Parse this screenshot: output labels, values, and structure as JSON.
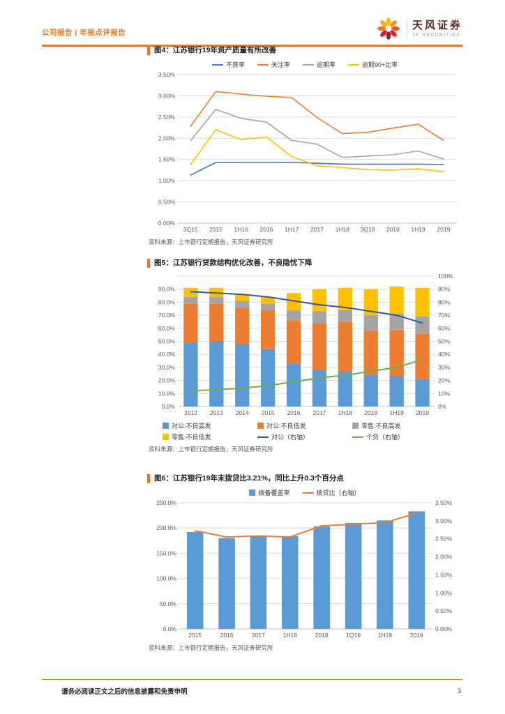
{
  "header": {
    "category": "公司报告 | 年报点评报告",
    "brand_cn": "天风证券",
    "brand_en": "TF SECURITIES"
  },
  "footer": {
    "disclaimer": "请务必阅读正文之后的信息披露和免责申明",
    "page": "3"
  },
  "chart_data": [
    {
      "id": "fig4",
      "type": "line",
      "title": "图4：江苏银行19年资产质量有所改善",
      "source": "资料来源：上市银行定期报告，天风证券研究所",
      "legend_position": "top",
      "categories": [
        "3Q15",
        "2015",
        "1H16",
        "2016",
        "1H17",
        "2017",
        "1H18",
        "3Q18",
        "2018",
        "1H19",
        "2019"
      ],
      "left_axis": {
        "min": 0,
        "max": 3.5,
        "tick_values": [
          0,
          0.5,
          1,
          1.5,
          2,
          2.5,
          3,
          3.5
        ],
        "tick_labels": [
          "0.00%",
          "0.50%",
          "1.00%",
          "1.50%",
          "2.00%",
          "2.50%",
          "3.00%",
          "3.50%"
        ]
      },
      "line_series": [
        {
          "name": "不良率",
          "color": "#4472C4",
          "axis": "left",
          "values": [
            1.13,
            1.43,
            1.43,
            1.43,
            1.43,
            1.41,
            1.39,
            1.39,
            1.39,
            1.39,
            1.38
          ]
        },
        {
          "name": "关注率",
          "color": "#ED7D31",
          "axis": "left",
          "values": [
            2.28,
            3.1,
            3.04,
            2.99,
            2.96,
            2.49,
            2.11,
            2.14,
            2.24,
            2.33,
            1.95
          ]
        },
        {
          "name": "逾期率",
          "color": "#A5A5A5",
          "axis": "left",
          "values": [
            1.94,
            2.68,
            2.47,
            2.38,
            1.95,
            1.86,
            1.55,
            1.58,
            1.61,
            1.7,
            1.51
          ]
        },
        {
          "name": "逾期90+比率",
          "color": "#FFC000",
          "axis": "left",
          "values": [
            1.38,
            2.2,
            1.97,
            2.03,
            1.57,
            1.35,
            1.31,
            1.26,
            1.25,
            1.28,
            1.21
          ]
        }
      ]
    },
    {
      "id": "fig5",
      "type": "stacked_bar_line",
      "title": "图5：江苏银行贷款结构优化改善，不良隐忧下降",
      "source": "资料来源：上市银行定期报告，天风证券研究所",
      "legend_position": "bottom",
      "stacked": true,
      "categories": [
        "2012",
        "2013",
        "2014",
        "2015",
        "2016",
        "2017",
        "1H18",
        "2018",
        "1H19",
        "2019"
      ],
      "left_axis": {
        "min": 0,
        "max": 100,
        "grid_values": [
          0,
          10,
          20,
          30,
          40,
          50,
          60,
          70,
          80,
          90,
          100
        ],
        "tick_values": [
          0,
          10,
          20,
          30,
          40,
          50,
          60,
          70,
          80,
          90
        ],
        "tick_labels": [
          "0.0%",
          "10.0%",
          "20.0%",
          "30.0%",
          "40.0%",
          "50.0%",
          "60.0%",
          "70.0%",
          "80.0%",
          "90.0%"
        ]
      },
      "right_axis": {
        "min": 0,
        "max": 100,
        "tick_values": [
          0,
          10,
          20,
          30,
          40,
          50,
          60,
          70,
          80,
          90,
          100
        ],
        "tick_labels": [
          "0%",
          "10%",
          "20%",
          "30%",
          "40%",
          "50%",
          "60%",
          "70%",
          "80%",
          "90%",
          "100%"
        ]
      },
      "bar_series": [
        {
          "name": "对公:不良高发",
          "color": "#5B9BD5",
          "values": [
            49,
            50,
            48,
            44,
            33,
            28,
            27,
            24,
            23,
            21
          ]
        },
        {
          "name": "对公:不良低发",
          "color": "#ED7D31",
          "values": [
            30,
            29,
            28,
            30,
            33,
            36,
            38,
            34,
            36,
            35
          ]
        },
        {
          "name": "零售:不良高发",
          "color": "#A5A5A5",
          "values": [
            5,
            5,
            5,
            5,
            8,
            9,
            9,
            12,
            12,
            13
          ]
        },
        {
          "name": "零售:不良低发",
          "color": "#FFC000",
          "values": [
            7,
            7,
            5,
            5,
            13,
            17,
            17,
            20,
            21,
            22
          ]
        }
      ],
      "line_series": [
        {
          "name": "对公（右轴）",
          "color": "#2E5B9F",
          "axis": "right",
          "values": [
            88,
            87,
            86,
            84,
            81,
            78,
            76,
            73,
            70,
            64
          ]
        },
        {
          "name": "个贷（右轴）",
          "color": "#70AD47",
          "axis": "right",
          "values": [
            12,
            13,
            14,
            16,
            19,
            22,
            24,
            27,
            30,
            36
          ]
        }
      ]
    },
    {
      "id": "fig6",
      "type": "bar_line",
      "title": "图6：江苏银行19年末拨贷比3.21%，同比上升0.3个百分点",
      "source": "资料来源：上市银行定期报告，天风证券研究所",
      "legend_position": "top",
      "stacked": false,
      "categories": [
        "2015",
        "2016",
        "2017",
        "1H18",
        "2018",
        "1Q19",
        "1H19",
        "2019"
      ],
      "left_axis": {
        "min": 0,
        "max": 250,
        "tick_values": [
          0,
          50,
          100,
          150,
          200,
          250
        ],
        "tick_labels": [
          "0.0%",
          "50.0%",
          "100.0%",
          "150.0%",
          "200.0%",
          "250.0%"
        ]
      },
      "right_axis": {
        "min": 0,
        "max": 3.5,
        "tick_values": [
          0,
          0.5,
          1,
          1.5,
          2,
          2.5,
          3,
          3.5
        ],
        "tick_labels": [
          "0.00%",
          "0.50%",
          "1.00%",
          "1.50%",
          "2.00%",
          "2.50%",
          "3.00%",
          "3.50%"
        ]
      },
      "bar_series": [
        {
          "name": "拨备覆盖率",
          "color": "#5B9BD5",
          "values": [
            192,
            180,
            184,
            184,
            203,
            210,
            215,
            233
          ]
        }
      ],
      "line_series": [
        {
          "name": "拨贷比（右轴）",
          "color": "#ED7D31",
          "axis": "right",
          "values": [
            2.72,
            2.55,
            2.58,
            2.55,
            2.86,
            2.9,
            2.95,
            3.21
          ]
        }
      ]
    }
  ]
}
